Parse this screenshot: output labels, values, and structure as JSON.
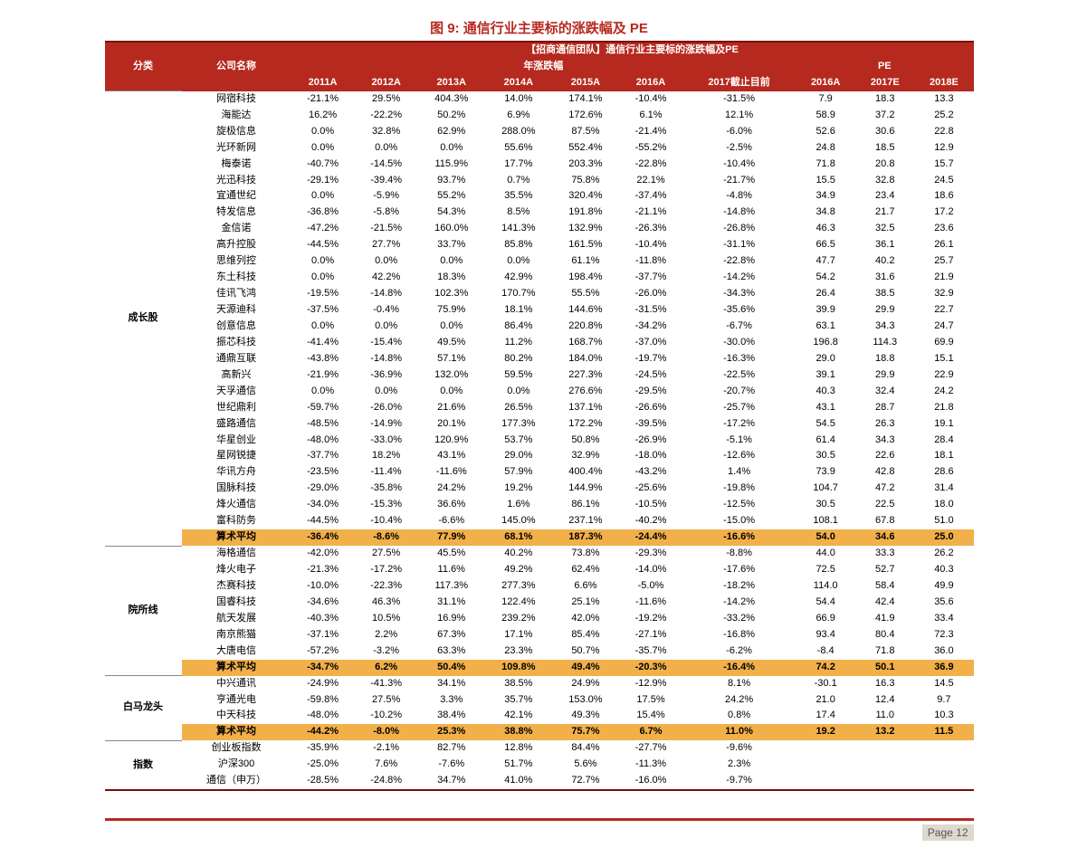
{
  "figure": {
    "label_num": "图 9:",
    "label_txt": "通信行业主要标的涨跌幅及 PE"
  },
  "header": {
    "banner": "【招商通信团队】通信行业主要标的涨跌幅及PE",
    "col_category": "分类",
    "col_company": "公司名称",
    "group_years": "年涨跌幅",
    "group_pe": "PE",
    "years": [
      "2011A",
      "2012A",
      "2013A",
      "2014A",
      "2015A",
      "2016A",
      "2017截止目前"
    ],
    "pe_years": [
      "2016A",
      "2017E",
      "2018E"
    ]
  },
  "groups": [
    {
      "category": "成长股",
      "rows": [
        {
          "name": "网宿科技",
          "y": [
            "-21.1%",
            "29.5%",
            "404.3%",
            "14.0%",
            "174.1%",
            "-10.4%",
            "-31.5%"
          ],
          "pe": [
            "7.9",
            "18.3",
            "13.3"
          ]
        },
        {
          "name": "海能达",
          "y": [
            "16.2%",
            "-22.2%",
            "50.2%",
            "6.9%",
            "172.6%",
            "6.1%",
            "12.1%"
          ],
          "pe": [
            "58.9",
            "37.2",
            "25.2"
          ]
        },
        {
          "name": "旋极信息",
          "y": [
            "0.0%",
            "32.8%",
            "62.9%",
            "288.0%",
            "87.5%",
            "-21.4%",
            "-6.0%"
          ],
          "pe": [
            "52.6",
            "30.6",
            "22.8"
          ]
        },
        {
          "name": "光环新网",
          "y": [
            "0.0%",
            "0.0%",
            "0.0%",
            "55.6%",
            "552.4%",
            "-55.2%",
            "-2.5%"
          ],
          "pe": [
            "24.8",
            "18.5",
            "12.9"
          ]
        },
        {
          "name": "梅泰诺",
          "y": [
            "-40.7%",
            "-14.5%",
            "115.9%",
            "17.7%",
            "203.3%",
            "-22.8%",
            "-10.4%"
          ],
          "pe": [
            "71.8",
            "20.8",
            "15.7"
          ]
        },
        {
          "name": "光迅科技",
          "y": [
            "-29.1%",
            "-39.4%",
            "93.7%",
            "0.7%",
            "75.8%",
            "22.1%",
            "-21.7%"
          ],
          "pe": [
            "15.5",
            "32.8",
            "24.5"
          ]
        },
        {
          "name": "宜通世纪",
          "y": [
            "0.0%",
            "-5.9%",
            "55.2%",
            "35.5%",
            "320.4%",
            "-37.4%",
            "-4.8%"
          ],
          "pe": [
            "34.9",
            "23.4",
            "18.6"
          ]
        },
        {
          "name": "特发信息",
          "y": [
            "-36.8%",
            "-5.8%",
            "54.3%",
            "8.5%",
            "191.8%",
            "-21.1%",
            "-14.8%"
          ],
          "pe": [
            "34.8",
            "21.7",
            "17.2"
          ]
        },
        {
          "name": "金信诺",
          "y": [
            "-47.2%",
            "-21.5%",
            "160.0%",
            "141.3%",
            "132.9%",
            "-26.3%",
            "-26.8%"
          ],
          "pe": [
            "46.3",
            "32.5",
            "23.6"
          ]
        },
        {
          "name": "高升控股",
          "y": [
            "-44.5%",
            "27.7%",
            "33.7%",
            "85.8%",
            "161.5%",
            "-10.4%",
            "-31.1%"
          ],
          "pe": [
            "66.5",
            "36.1",
            "26.1"
          ]
        },
        {
          "name": "思维列控",
          "y": [
            "0.0%",
            "0.0%",
            "0.0%",
            "0.0%",
            "61.1%",
            "-11.8%",
            "-22.8%"
          ],
          "pe": [
            "47.7",
            "40.2",
            "25.7"
          ]
        },
        {
          "name": "东土科技",
          "y": [
            "0.0%",
            "42.2%",
            "18.3%",
            "42.9%",
            "198.4%",
            "-37.7%",
            "-14.2%"
          ],
          "pe": [
            "54.2",
            "31.6",
            "21.9"
          ]
        },
        {
          "name": "佳讯飞鸿",
          "y": [
            "-19.5%",
            "-14.8%",
            "102.3%",
            "170.7%",
            "55.5%",
            "-26.0%",
            "-34.3%"
          ],
          "pe": [
            "26.4",
            "38.5",
            "32.9"
          ]
        },
        {
          "name": "天源迪科",
          "y": [
            "-37.5%",
            "-0.4%",
            "75.9%",
            "18.1%",
            "144.6%",
            "-31.5%",
            "-35.6%"
          ],
          "pe": [
            "39.9",
            "29.9",
            "22.7"
          ]
        },
        {
          "name": "创意信息",
          "y": [
            "0.0%",
            "0.0%",
            "0.0%",
            "86.4%",
            "220.8%",
            "-34.2%",
            "-6.7%"
          ],
          "pe": [
            "63.1",
            "34.3",
            "24.7"
          ]
        },
        {
          "name": "振芯科技",
          "y": [
            "-41.4%",
            "-15.4%",
            "49.5%",
            "11.2%",
            "168.7%",
            "-37.0%",
            "-30.0%"
          ],
          "pe": [
            "196.8",
            "114.3",
            "69.9"
          ]
        },
        {
          "name": "通鼎互联",
          "y": [
            "-43.8%",
            "-14.8%",
            "57.1%",
            "80.2%",
            "184.0%",
            "-19.7%",
            "-16.3%"
          ],
          "pe": [
            "29.0",
            "18.8",
            "15.1"
          ]
        },
        {
          "name": "高新兴",
          "y": [
            "-21.9%",
            "-36.9%",
            "132.0%",
            "59.5%",
            "227.3%",
            "-24.5%",
            "-22.5%"
          ],
          "pe": [
            "39.1",
            "29.9",
            "22.9"
          ]
        },
        {
          "name": "天孚通信",
          "y": [
            "0.0%",
            "0.0%",
            "0.0%",
            "0.0%",
            "276.6%",
            "-29.5%",
            "-20.7%"
          ],
          "pe": [
            "40.3",
            "32.4",
            "24.2"
          ]
        },
        {
          "name": "世纪鼎利",
          "y": [
            "-59.7%",
            "-26.0%",
            "21.6%",
            "26.5%",
            "137.1%",
            "-26.6%",
            "-25.7%"
          ],
          "pe": [
            "43.1",
            "28.7",
            "21.8"
          ]
        },
        {
          "name": "盛路通信",
          "y": [
            "-48.5%",
            "-14.9%",
            "20.1%",
            "177.3%",
            "172.2%",
            "-39.5%",
            "-17.2%"
          ],
          "pe": [
            "54.5",
            "26.3",
            "19.1"
          ]
        },
        {
          "name": "华星创业",
          "y": [
            "-48.0%",
            "-33.0%",
            "120.9%",
            "53.7%",
            "50.8%",
            "-26.9%",
            "-5.1%"
          ],
          "pe": [
            "61.4",
            "34.3",
            "28.4"
          ]
        },
        {
          "name": "星网锐捷",
          "y": [
            "-37.7%",
            "18.2%",
            "43.1%",
            "29.0%",
            "32.9%",
            "-18.0%",
            "-12.6%"
          ],
          "pe": [
            "30.5",
            "22.6",
            "18.1"
          ]
        },
        {
          "name": "华讯方舟",
          "y": [
            "-23.5%",
            "-11.4%",
            "-11.6%",
            "57.9%",
            "400.4%",
            "-43.2%",
            "1.4%"
          ],
          "pe": [
            "73.9",
            "42.8",
            "28.6"
          ]
        },
        {
          "name": "国脉科技",
          "y": [
            "-29.0%",
            "-35.8%",
            "24.2%",
            "19.2%",
            "144.9%",
            "-25.6%",
            "-19.8%"
          ],
          "pe": [
            "104.7",
            "47.2",
            "31.4"
          ]
        },
        {
          "name": "烽火通信",
          "y": [
            "-34.0%",
            "-15.3%",
            "36.6%",
            "1.6%",
            "86.1%",
            "-10.5%",
            "-12.5%"
          ],
          "pe": [
            "30.5",
            "22.5",
            "18.0"
          ]
        },
        {
          "name": "富科防务",
          "y": [
            "-44.5%",
            "-10.4%",
            "-6.6%",
            "145.0%",
            "237.1%",
            "-40.2%",
            "-15.0%"
          ],
          "pe": [
            "108.1",
            "67.8",
            "51.0"
          ]
        }
      ],
      "avg": {
        "name": "算术平均",
        "y": [
          "-36.4%",
          "-8.6%",
          "77.9%",
          "68.1%",
          "187.3%",
          "-24.4%",
          "-16.6%"
        ],
        "pe": [
          "54.0",
          "34.6",
          "25.0"
        ]
      }
    },
    {
      "category": "院所线",
      "rows": [
        {
          "name": "海格通信",
          "y": [
            "-42.0%",
            "27.5%",
            "45.5%",
            "40.2%",
            "73.8%",
            "-29.3%",
            "-8.8%"
          ],
          "pe": [
            "44.0",
            "33.3",
            "26.2"
          ]
        },
        {
          "name": "烽火电子",
          "y": [
            "-21.3%",
            "-17.2%",
            "11.6%",
            "49.2%",
            "62.4%",
            "-14.0%",
            "-17.6%"
          ],
          "pe": [
            "72.5",
            "52.7",
            "40.3"
          ]
        },
        {
          "name": "杰赛科技",
          "y": [
            "-10.0%",
            "-22.3%",
            "117.3%",
            "277.3%",
            "6.6%",
            "-5.0%",
            "-18.2%"
          ],
          "pe": [
            "114.0",
            "58.4",
            "49.9"
          ]
        },
        {
          "name": "国睿科技",
          "y": [
            "-34.6%",
            "46.3%",
            "31.1%",
            "122.4%",
            "25.1%",
            "-11.6%",
            "-14.2%"
          ],
          "pe": [
            "54.4",
            "42.4",
            "35.6"
          ]
        },
        {
          "name": "航天发展",
          "y": [
            "-40.3%",
            "10.5%",
            "16.9%",
            "239.2%",
            "42.0%",
            "-19.2%",
            "-33.2%"
          ],
          "pe": [
            "66.9",
            "41.9",
            "33.4"
          ]
        },
        {
          "name": "南京熊猫",
          "y": [
            "-37.1%",
            "2.2%",
            "67.3%",
            "17.1%",
            "85.4%",
            "-27.1%",
            "-16.8%"
          ],
          "pe": [
            "93.4",
            "80.4",
            "72.3"
          ]
        },
        {
          "name": "大唐电信",
          "y": [
            "-57.2%",
            "-3.2%",
            "63.3%",
            "23.3%",
            "50.7%",
            "-35.7%",
            "-6.2%"
          ],
          "pe": [
            "-8.4",
            "71.8",
            "36.0"
          ]
        }
      ],
      "avg": {
        "name": "算术平均",
        "y": [
          "-34.7%",
          "6.2%",
          "50.4%",
          "109.8%",
          "49.4%",
          "-20.3%",
          "-16.4%"
        ],
        "pe": [
          "74.2",
          "50.1",
          "36.9"
        ]
      }
    },
    {
      "category": "白马龙头",
      "rows": [
        {
          "name": "中兴通讯",
          "y": [
            "-24.9%",
            "-41.3%",
            "34.1%",
            "38.5%",
            "24.9%",
            "-12.9%",
            "8.1%"
          ],
          "pe": [
            "-30.1",
            "16.3",
            "14.5"
          ]
        },
        {
          "name": "亨通光电",
          "y": [
            "-59.8%",
            "27.5%",
            "3.3%",
            "35.7%",
            "153.0%",
            "17.5%",
            "24.2%"
          ],
          "pe": [
            "21.0",
            "12.4",
            "9.7"
          ]
        },
        {
          "name": "中天科技",
          "y": [
            "-48.0%",
            "-10.2%",
            "38.4%",
            "42.1%",
            "49.3%",
            "15.4%",
            "0.8%"
          ],
          "pe": [
            "17.4",
            "11.0",
            "10.3"
          ]
        }
      ],
      "avg": {
        "name": "算术平均",
        "y": [
          "-44.2%",
          "-8.0%",
          "25.3%",
          "38.8%",
          "75.7%",
          "6.7%",
          "11.0%"
        ],
        "pe": [
          "19.2",
          "13.2",
          "11.5"
        ]
      }
    },
    {
      "category": "指数",
      "rows": [
        {
          "name": "创业板指数",
          "y": [
            "-35.9%",
            "-2.1%",
            "82.7%",
            "12.8%",
            "84.4%",
            "-27.7%",
            "-9.6%"
          ],
          "pe": [
            "",
            "",
            ""
          ]
        },
        {
          "name": "沪深300",
          "y": [
            "-25.0%",
            "7.6%",
            "-7.6%",
            "51.7%",
            "5.6%",
            "-11.3%",
            "2.3%"
          ],
          "pe": [
            "",
            "",
            ""
          ]
        },
        {
          "name": "通信（申万）",
          "y": [
            "-28.5%",
            "-24.8%",
            "34.7%",
            "41.0%",
            "72.7%",
            "-16.0%",
            "-9.7%"
          ],
          "pe": [
            "",
            "",
            ""
          ]
        }
      ]
    }
  ],
  "footer": {
    "page_label": "Page 12"
  },
  "style": {
    "header_bg": "#b6291f",
    "header_fg": "#ffffff",
    "avg_bg": "#f2b04b",
    "border_color": "#7a0c0c",
    "font_size_body": 11,
    "font_size_title": 15
  }
}
